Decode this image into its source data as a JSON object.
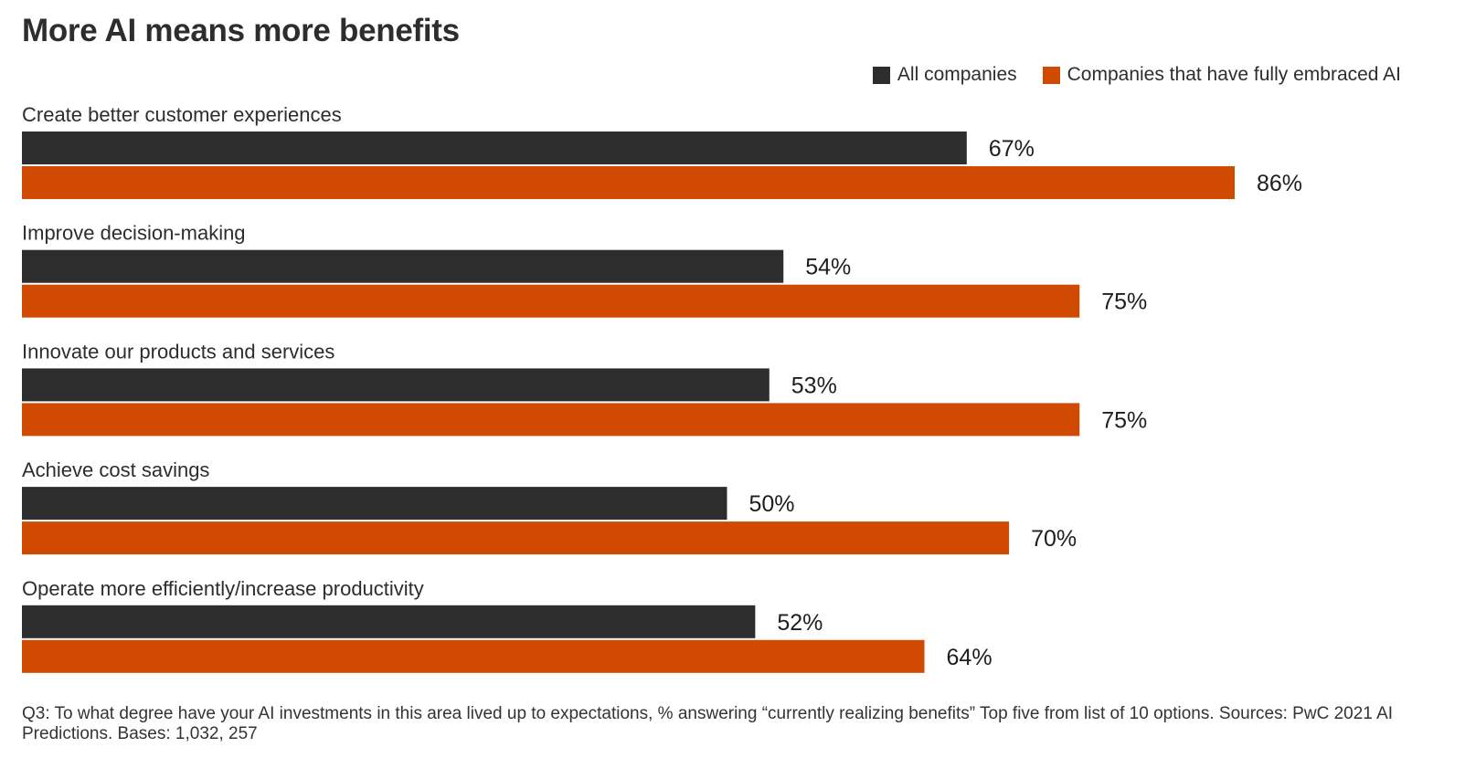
{
  "chart_data": {
    "type": "bar",
    "orientation": "horizontal",
    "title": "More AI means more benefits",
    "categories": [
      "Create better customer experiences",
      "Improve decision-making",
      "Innovate our products and services",
      "Achieve cost savings",
      "Operate more efficiently/increase productivity"
    ],
    "series": [
      {
        "name": "All companies",
        "values": [
          67,
          54,
          53,
          50,
          52
        ],
        "color": "#2d2d2d"
      },
      {
        "name": "Companies that have fully embraced AI",
        "values": [
          86,
          75,
          75,
          70,
          64
        ],
        "color": "#d04a02"
      }
    ],
    "value_suffix": "%",
    "xlim": [
      0,
      100
    ],
    "grid": false,
    "legend_position": "top-right"
  },
  "footnote": "Q3: To what degree have your AI investments in this area lived up to expectations, % answering “currently realizing benefits” Top five from list of 10 options. Sources: PwC 2021 AI Predictions. Bases: 1,032, 257"
}
